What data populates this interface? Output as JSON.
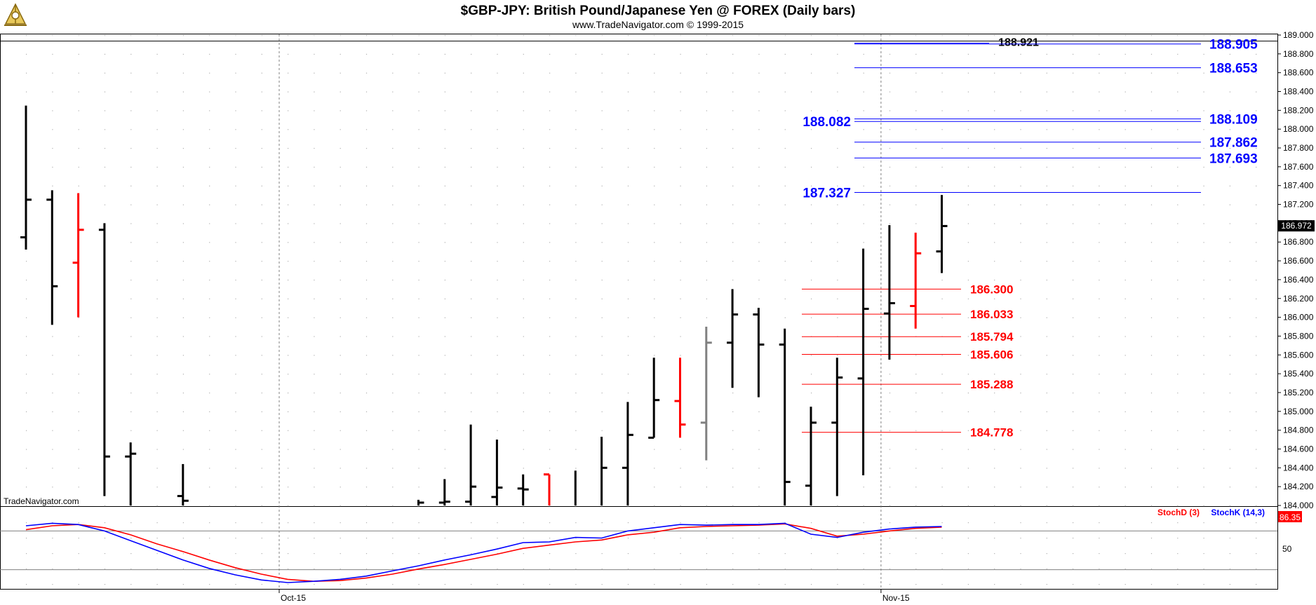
{
  "header": {
    "title": "$GBP-JPY:  British Pound/Japanese Yen @ FOREX  (Daily bars)",
    "subtitle": "www.TradeNavigator.com © 1999-2015",
    "watermark": "TradeNavigator.com"
  },
  "colors": {
    "background": "#ffffff",
    "up_bar": "#000000",
    "down_bar": "#ff0000",
    "neutral_bar": "#808080",
    "resistance": "#0000ff",
    "support": "#ff0000",
    "stoch_k": "#0000ff",
    "stoch_d": "#ff0000",
    "grid_dot": "#b0b0b0"
  },
  "chart_data": {
    "type": "ohlc",
    "price_axis": {
      "min": 184.0,
      "max": 189.0,
      "ticks": [
        "184.000",
        "184.200",
        "184.400",
        "184.600",
        "184.800",
        "185.000",
        "185.200",
        "185.400",
        "185.600",
        "185.800",
        "186.000",
        "186.200",
        "186.400",
        "186.600",
        "186.800",
        "187.000",
        "187.200",
        "187.400",
        "187.600",
        "187.800",
        "188.000",
        "188.200",
        "188.400",
        "188.600",
        "188.800",
        "189.000"
      ],
      "last_price_label": "186.972"
    },
    "x_axis": {
      "labels": [
        "Oct-15",
        "Nov-15"
      ],
      "label_bars": [
        10,
        33
      ]
    },
    "bars": [
      {
        "o": 186.85,
        "h": 188.25,
        "l": 186.72,
        "c": 187.25,
        "col": "up_bar"
      },
      {
        "o": 187.25,
        "h": 187.35,
        "l": 185.92,
        "c": 186.33,
        "col": "up_bar"
      },
      {
        "o": 186.58,
        "h": 187.32,
        "l": 186.0,
        "c": 186.93,
        "col": "down_bar"
      },
      {
        "o": 186.93,
        "h": 187.0,
        "l": 184.1,
        "c": 184.52,
        "col": "up_bar"
      },
      {
        "o": 184.52,
        "h": 184.67,
        "l": 184.0,
        "c": 184.55,
        "col": "up_bar"
      },
      {
        "o": null,
        "h": null,
        "l": null,
        "c": null,
        "col": "up_bar"
      },
      {
        "o": 184.1,
        "h": 184.44,
        "l": 184.0,
        "c": 184.05,
        "col": "up_bar"
      },
      {
        "o": null,
        "h": null,
        "l": null,
        "c": null,
        "col": "up_bar"
      },
      {
        "o": null,
        "h": null,
        "l": null,
        "c": null,
        "col": "up_bar"
      },
      {
        "o": null,
        "h": null,
        "l": null,
        "c": null,
        "col": "up_bar"
      },
      {
        "o": null,
        "h": null,
        "l": null,
        "c": null,
        "col": "up_bar"
      },
      {
        "o": null,
        "h": null,
        "l": null,
        "c": null,
        "col": "up_bar"
      },
      {
        "o": null,
        "h": null,
        "l": null,
        "c": null,
        "col": "up_bar"
      },
      {
        "o": null,
        "h": null,
        "l": null,
        "c": null,
        "col": "up_bar"
      },
      {
        "o": null,
        "h": null,
        "l": null,
        "c": null,
        "col": "up_bar"
      },
      {
        "o": 184.0,
        "h": 184.06,
        "l": 184.0,
        "c": 184.03,
        "col": "up_bar"
      },
      {
        "o": 184.03,
        "h": 184.28,
        "l": 184.0,
        "c": 184.04,
        "col": "up_bar"
      },
      {
        "o": 184.04,
        "h": 184.86,
        "l": 184.0,
        "c": 184.2,
        "col": "up_bar"
      },
      {
        "o": 184.09,
        "h": 184.7,
        "l": 184.0,
        "c": 184.19,
        "col": "up_bar"
      },
      {
        "o": 184.18,
        "h": 184.33,
        "l": 184.0,
        "c": 184.17,
        "col": "up_bar"
      },
      {
        "o": 184.33,
        "h": 184.33,
        "l": 184.0,
        "c": 184.0,
        "col": "down_bar"
      },
      {
        "o": 184.0,
        "h": 184.37,
        "l": 184.0,
        "c": 184.0,
        "col": "up_bar"
      },
      {
        "o": 184.0,
        "h": 184.73,
        "l": 184.0,
        "c": 184.4,
        "col": "up_bar"
      },
      {
        "o": 184.4,
        "h": 185.1,
        "l": 184.0,
        "c": 184.75,
        "col": "up_bar"
      },
      {
        "o": 184.72,
        "h": 185.57,
        "l": 184.72,
        "c": 185.12,
        "col": "up_bar"
      },
      {
        "o": 185.11,
        "h": 185.57,
        "l": 184.72,
        "c": 184.86,
        "col": "down_bar"
      },
      {
        "o": 184.88,
        "h": 185.9,
        "l": 184.48,
        "c": 185.73,
        "col": "neutral_bar"
      },
      {
        "o": 185.73,
        "h": 186.3,
        "l": 185.25,
        "c": 186.03,
        "col": "up_bar"
      },
      {
        "o": 186.03,
        "h": 186.1,
        "l": 185.15,
        "c": 185.71,
        "col": "up_bar"
      },
      {
        "o": 185.71,
        "h": 185.88,
        "l": 184.0,
        "c": 184.25,
        "col": "up_bar"
      },
      {
        "o": 184.21,
        "h": 185.05,
        "l": 184.0,
        "c": 184.88,
        "col": "up_bar"
      },
      {
        "o": 184.88,
        "h": 185.57,
        "l": 184.1,
        "c": 185.36,
        "col": "up_bar"
      },
      {
        "o": 185.35,
        "h": 186.73,
        "l": 184.32,
        "c": 186.09,
        "col": "up_bar"
      },
      {
        "o": 186.04,
        "h": 186.98,
        "l": 185.55,
        "c": 186.15,
        "col": "up_bar"
      },
      {
        "o": 186.12,
        "h": 186.9,
        "l": 185.88,
        "c": 186.68,
        "col": "down_bar"
      },
      {
        "o": 186.7,
        "h": 187.3,
        "l": 186.47,
        "c": 186.97,
        "col": "up_bar"
      }
    ],
    "resistance_levels": [
      {
        "value": 188.921,
        "label": "188.921",
        "label_side": "inner",
        "color": "#000000"
      },
      {
        "value": 188.905,
        "label": "188.905",
        "label_side": "right",
        "color": "#0000ff"
      },
      {
        "value": 188.653,
        "label": "188.653",
        "label_side": "right",
        "color": "#0000ff"
      },
      {
        "value": 188.109,
        "label": "188.109",
        "label_side": "right",
        "color": "#0000ff"
      },
      {
        "value": 188.082,
        "label": "188.082",
        "label_side": "left",
        "color": "#0000ff"
      },
      {
        "value": 187.862,
        "label": "187.862",
        "label_side": "right",
        "color": "#0000ff"
      },
      {
        "value": 187.693,
        "label": "187.693",
        "label_side": "right",
        "color": "#0000ff"
      },
      {
        "value": 187.327,
        "label": "187.327",
        "label_side": "left",
        "color": "#0000ff"
      }
    ],
    "support_levels": [
      {
        "value": 186.3,
        "label": "186.300"
      },
      {
        "value": 186.033,
        "label": "186.033"
      },
      {
        "value": 185.794,
        "label": "185.794"
      },
      {
        "value": 185.606,
        "label": "185.606"
      },
      {
        "value": 185.288,
        "label": "185.288"
      },
      {
        "value": 184.778,
        "label": "184.778"
      }
    ],
    "stochastic": {
      "legend_d": "StochD (3)",
      "legend_k": "StochK (14,3)",
      "last_value_label": "86.35",
      "axis_label": "50",
      "range": [
        0,
        100
      ],
      "stoch_k": [
        88,
        92,
        90,
        80,
        65,
        50,
        35,
        22,
        12,
        4,
        0,
        2,
        5,
        10,
        18,
        26,
        35,
        43,
        52,
        62,
        63,
        70,
        69,
        80,
        85,
        90,
        89,
        90,
        90,
        92,
        75,
        70,
        78,
        83,
        86,
        87
      ],
      "stoch_d": [
        82,
        88,
        90,
        85,
        74,
        60,
        48,
        35,
        23,
        13,
        5,
        2,
        3,
        7,
        13,
        21,
        28,
        36,
        44,
        53,
        58,
        63,
        66,
        74,
        78,
        85,
        87,
        88,
        89,
        91,
        84,
        72,
        75,
        80,
        84,
        86
      ]
    }
  }
}
